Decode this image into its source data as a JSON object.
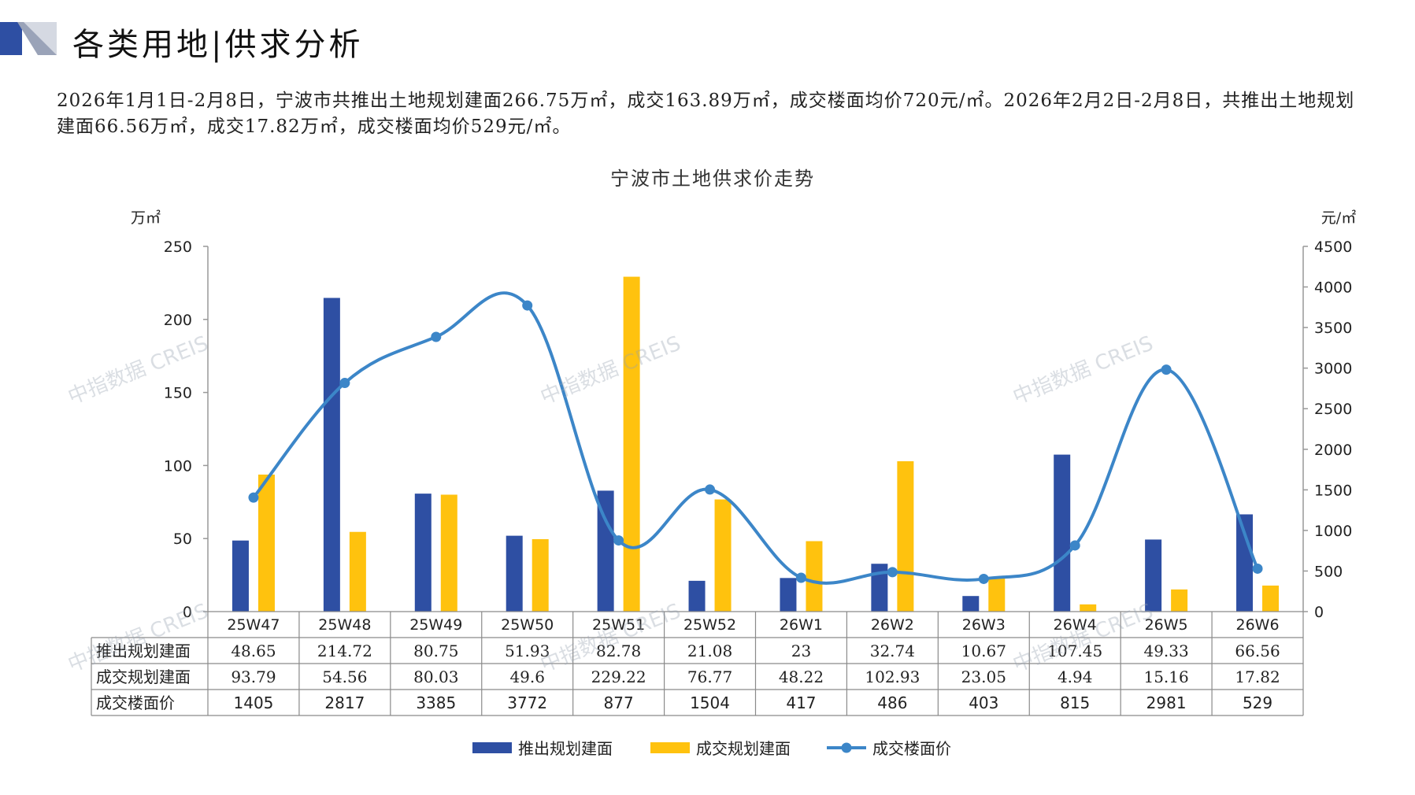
{
  "header": {
    "title": "各类用地|供求分析",
    "summary": "2026年1月1日-2月8日，宁波市共推出土地规划建面266.75万㎡，成交163.89万㎡，成交楼面均价720元/㎡。2026年2月2日-2月8日，共推出土地规划建面66.56万㎡，成交17.82万㎡，成交楼面均价529元/㎡。"
  },
  "watermark": "中指数据 CREIS",
  "chart_data": {
    "type": "bar",
    "title": "宁波市土地供求价走势",
    "categories": [
      "25W47",
      "25W48",
      "25W49",
      "25W50",
      "25W51",
      "25W52",
      "26W1",
      "26W2",
      "26W3",
      "26W4",
      "26W5",
      "26W6"
    ],
    "left_axis": {
      "unit": "万㎡",
      "ylim": [
        0,
        250
      ],
      "ticks": [
        0,
        50,
        100,
        150,
        200,
        250
      ]
    },
    "right_axis": {
      "unit": "元/㎡",
      "ylim": [
        0,
        4500
      ],
      "ticks": [
        0,
        500,
        1000,
        1500,
        2000,
        2500,
        3000,
        3500,
        4000,
        4500
      ]
    },
    "series": [
      {
        "name": "推出规划建面",
        "type": "bar",
        "axis": "left",
        "color": "#2E4FA3",
        "values": [
          48.65,
          214.72,
          80.75,
          51.93,
          82.78,
          21.08,
          23,
          32.74,
          10.67,
          107.45,
          49.33,
          66.56
        ],
        "labels": [
          "48.65",
          "214.72",
          "80.75",
          "51.93",
          "82.78",
          "21.08",
          "23",
          "32.74",
          "10.67",
          "107.45",
          "49.33",
          "66.56"
        ]
      },
      {
        "name": "成交规划建面",
        "type": "bar",
        "axis": "left",
        "color": "#FFC20E",
        "values": [
          93.79,
          54.56,
          80.03,
          49.6,
          229.22,
          76.77,
          48.22,
          102.93,
          23.05,
          4.94,
          15.16,
          17.82
        ],
        "labels": [
          "93.79",
          "54.56",
          "80.03",
          "49.6",
          "229.22",
          "76.77",
          "48.22",
          "102.93",
          "23.05",
          "4.94",
          "15.16",
          "17.82"
        ]
      },
      {
        "name": "成交楼面价",
        "type": "line",
        "axis": "right",
        "color": "#3C86C8",
        "values": [
          1405,
          2817,
          3385,
          3772,
          877,
          1504,
          417,
          486,
          403,
          815,
          2981,
          529
        ],
        "labels": [
          "1405",
          "2817",
          "3385",
          "3772",
          "877",
          "1504",
          "417",
          "486",
          "403",
          "815",
          "2981",
          "529"
        ]
      }
    ],
    "table_row_labels": [
      "推出规划建面",
      "成交规划建面",
      "成交楼面价"
    ],
    "legend_position": "bottom"
  }
}
